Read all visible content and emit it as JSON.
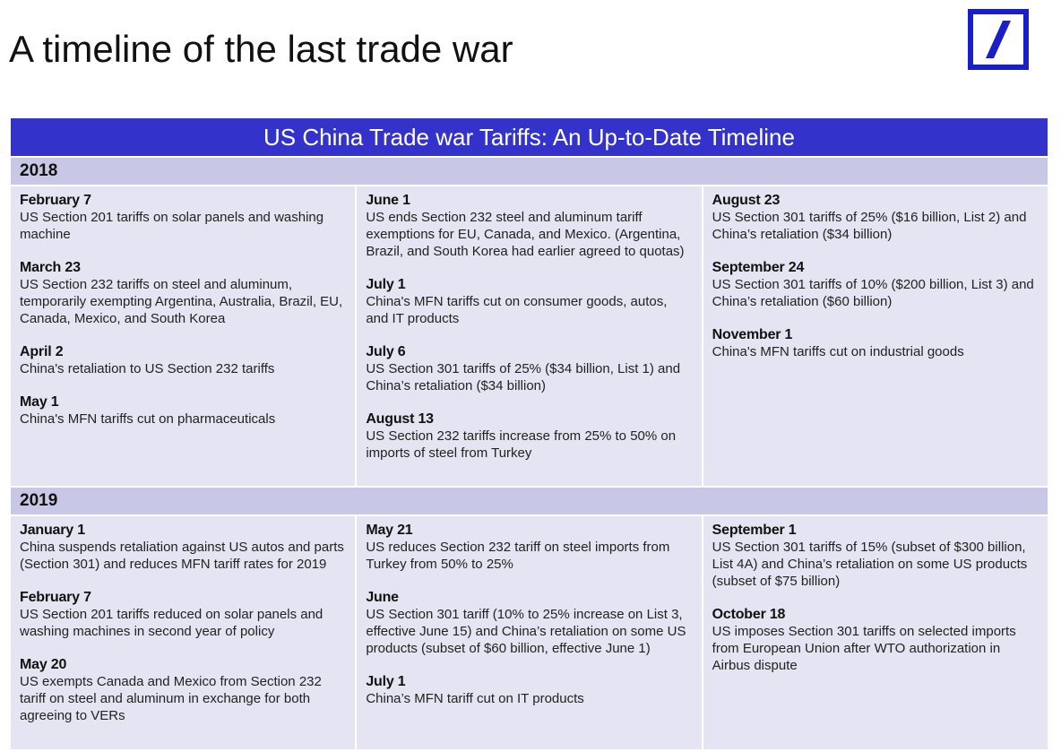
{
  "page_title": "A timeline of the last trade war",
  "banner_title": "US China Trade war Tariffs: An Up-to-Date Timeline",
  "colors": {
    "banner": "#3333cc",
    "year_bar": "#c8c8e6",
    "cell": "#e4e4f2",
    "logo": "#1a1ec8"
  },
  "logo_icon": "deutsche-bank-slash-logo",
  "sections": [
    {
      "year": "2018",
      "columns": [
        [
          {
            "date": "February 7",
            "text": "US Section 201 tariffs on solar panels and washing machine"
          },
          {
            "date": "March 23",
            "text": "US Section 232 tariffs on steel and aluminum, temporarily exempting Argentina, Australia, Brazil, EU, Canada, Mexico, and South Korea"
          },
          {
            "date": "April 2",
            "text": "China's retaliation to US Section 232 tariffs"
          },
          {
            "date": "May 1",
            "text": "China's MFN tariffs cut on pharmaceuticals"
          }
        ],
        [
          {
            "date": "June 1",
            "text": "US ends Section 232 steel and aluminum tariff exemptions for EU, Canada, and Mexico. (Argentina, Brazil, and South Korea had earlier agreed to quotas)"
          },
          {
            "date": "July 1",
            "text": "China's MFN tariffs cut on consumer goods, autos, and IT products"
          },
          {
            "date": "July 6",
            "text": "US Section 301 tariffs of 25% ($34 billion, List 1) and China’s retaliation ($34 billion)"
          },
          {
            "date": "August 13",
            "text": "US Section 232 tariffs increase from 25% to 50% on imports of steel from Turkey"
          }
        ],
        [
          {
            "date": "August 23",
            "text": "US Section 301 tariffs of 25% ($16 billion, List 2) and China’s retaliation ($34 billion)"
          },
          {
            "date": "September 24",
            "text": "US Section 301 tariffs of 10% ($200 billion, List 3) and China’s retaliation ($60 billion)"
          },
          {
            "date": "November 1",
            "text": "China's MFN tariffs cut on industrial goods"
          }
        ]
      ]
    },
    {
      "year": "2019",
      "columns": [
        [
          {
            "date": "January 1",
            "text": "China suspends retaliation against US autos and parts (Section 301) and reduces MFN tariff rates for 2019"
          },
          {
            "date": "February 7",
            "text": "US Section 201 tariffs reduced on solar panels and washing machines in second year of policy"
          },
          {
            "date": "May 20",
            "text": "US exempts Canada and Mexico from Section 232 tariff on steel and aluminum in exchange for both agreeing to VERs"
          }
        ],
        [
          {
            "date": "May 21",
            "text": "US reduces Section 232 tariff on steel imports from Turkey from 50% to 25%"
          },
          {
            "date": "June",
            "text": "US Section 301 tariff (10% to 25% increase on List 3, effective June 15) and China’s retaliation on some US products (subset of $60 billion, effective June 1)"
          },
          {
            "date": "July 1",
            "text": "China’s MFN tariff cut on IT products"
          }
        ],
        [
          {
            "date": "September 1",
            "text": "US Section 301 tariffs of 15% (subset of $300 billion, List 4A) and China’s retaliation on some US products (subset of $75 billion)"
          },
          {
            "date": "October 18",
            "text": "US imposes Section 301 tariffs on selected imports from European Union after WTO authorization in Airbus dispute"
          }
        ]
      ]
    }
  ]
}
